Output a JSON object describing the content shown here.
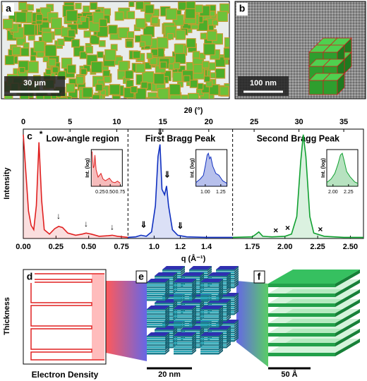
{
  "panels": {
    "a": {
      "label": "a",
      "scale_bar": "30 μm"
    },
    "b": {
      "label": "b",
      "scale_bar": "100 nm"
    },
    "d": {
      "label": "d",
      "y_label": "Thickness",
      "x_label": "Electron Density"
    },
    "e": {
      "label": "e",
      "scale_bar": "20 nm"
    },
    "f": {
      "label": "f",
      "scale_bar": "50 Å"
    }
  },
  "chart_data": {
    "type": "line",
    "panel_label": "c",
    "y_label": "Intensity",
    "x_label": "q (Å⁻¹)",
    "x2_label": "2θ (°)",
    "ylim": [
      0,
      1
    ],
    "segments": [
      {
        "title": "Low-angle region",
        "color": "#e02020",
        "xlim": [
          0,
          0.8
        ],
        "xticks": [
          {
            "value": 0,
            "label": "0.00"
          },
          0.25,
          {
            "value": 0.5,
            "label": "0.50"
          },
          0.75
        ],
        "x2lim": [
          0,
          11.2
        ],
        "x2ticks": [
          0,
          5,
          10
        ],
        "x": [
          0,
          0.02,
          0.04,
          0.06,
          0.08,
          0.1,
          0.12,
          0.14,
          0.16,
          0.2,
          0.24,
          0.27,
          0.3,
          0.34,
          0.4,
          0.45,
          0.48,
          0.52,
          0.58,
          0.65,
          0.68,
          0.72,
          0.8
        ],
        "values": [
          0.95,
          0.6,
          0.25,
          0.12,
          0.08,
          0.3,
          0.88,
          0.35,
          0.08,
          0.04,
          0.09,
          0.11,
          0.1,
          0.05,
          0.03,
          0.04,
          0.05,
          0.04,
          0.02,
          0.025,
          0.03,
          0.02,
          0.01
        ],
        "annotations": [
          {
            "text": "*",
            "x": 0.135,
            "y": 0.95
          },
          {
            "text": "↓",
            "x": 0.27,
            "y": 0.2
          },
          {
            "text": "↓",
            "x": 0.48,
            "y": 0.13
          },
          {
            "text": "↓",
            "x": 0.68,
            "y": 0.1
          }
        ],
        "inset": {
          "y_label": "Int. (log)",
          "xlim": [
            0.03,
            0.8
          ],
          "xticks": [
            0.25,
            {
              "value": 0.5,
              "label": "0.50"
            },
            0.75
          ],
          "x": [
            0.05,
            0.08,
            0.1,
            0.12,
            0.15,
            0.2,
            0.27,
            0.32,
            0.38,
            0.48,
            0.55,
            0.62,
            0.68,
            0.75
          ],
          "values": [
            0.95,
            0.5,
            0.55,
            0.85,
            0.45,
            0.25,
            0.35,
            0.2,
            0.15,
            0.22,
            0.12,
            0.1,
            0.14,
            0.08
          ]
        }
      },
      {
        "title": "First Bragg Peak",
        "color": "#1030c0",
        "xlim": [
          0.8,
          1.6
        ],
        "xticks": [
          {
            "value": 1,
            "label": "1.0"
          },
          1.2,
          1.4
        ],
        "x2lim": [
          11.2,
          22.6
        ],
        "x2ticks": [
          15,
          20
        ],
        "x": [
          0.8,
          0.86,
          0.9,
          0.94,
          0.98,
          1.01,
          1.03,
          1.045,
          1.06,
          1.08,
          1.095,
          1.11,
          1.14,
          1.18,
          1.25,
          1.4,
          1.6
        ],
        "values": [
          0.01,
          0.015,
          0.03,
          0.02,
          0.06,
          0.3,
          0.75,
          0.86,
          0.45,
          0.4,
          0.48,
          0.3,
          0.08,
          0.03,
          0.015,
          0.01,
          0.01
        ],
        "annotations": [
          {
            "text": "⇓",
            "x": 0.92,
            "y": 0.12
          },
          {
            "text": "⇓",
            "x": 1.045,
            "y": 0.97
          },
          {
            "text": "⇓",
            "x": 1.1,
            "y": 0.58
          },
          {
            "text": "⇓",
            "x": 1.2,
            "y": 0.11
          }
        ],
        "inset": {
          "y_label": "Int. (log)",
          "xlim": [
            0.85,
            1.35
          ],
          "xticks": [
            {
              "value": 1,
              "label": "1.00"
            },
            1.25
          ],
          "x": [
            0.85,
            0.92,
            0.97,
            1,
            1.03,
            1.05,
            1.07,
            1.09,
            1.12,
            1.17,
            1.22,
            1.28,
            1.35
          ],
          "values": [
            0.1,
            0.2,
            0.3,
            0.55,
            0.85,
            0.9,
            0.75,
            0.8,
            0.55,
            0.35,
            0.3,
            0.15,
            0.08
          ]
        }
      },
      {
        "title": "Second Bragg Peak",
        "color": "#10a030",
        "xlim": [
          1.6,
          2.6
        ],
        "xticks": [
          1.75,
          {
            "value": 2,
            "label": "2.00"
          },
          2.25,
          {
            "value": 2.5,
            "label": "2.50"
          }
        ],
        "x2lim": [
          22.6,
          37.2
        ],
        "x2ticks": [
          25,
          30,
          35
        ],
        "x": [
          1.6,
          1.75,
          1.78,
          1.8,
          1.83,
          1.9,
          2,
          2.05,
          2.09,
          2.12,
          2.14,
          2.16,
          2.19,
          2.22,
          2.3,
          2.45,
          2.6
        ],
        "values": [
          0.01,
          0.015,
          0.04,
          0.06,
          0.02,
          0.015,
          0.02,
          0.04,
          0.2,
          0.7,
          0.95,
          0.75,
          0.2,
          0.05,
          0.02,
          0.01,
          0.01
        ],
        "annotations": [
          {
            "text": "×",
            "x": 1.93,
            "y": 0.07
          },
          {
            "text": "×",
            "x": 2.02,
            "y": 0.09
          },
          {
            "text": "×",
            "x": 2.27,
            "y": 0.08
          }
        ],
        "inset": {
          "y_label": "Int. (log)",
          "xlim": [
            1.9,
            2.4
          ],
          "xticks": [
            {
              "value": 2,
              "label": "2.00"
            },
            2.25
          ],
          "x": [
            1.9,
            1.97,
            2.03,
            2.08,
            2.12,
            2.15,
            2.18,
            2.22,
            2.28,
            2.35,
            2.4
          ],
          "values": [
            0.1,
            0.2,
            0.35,
            0.6,
            0.85,
            0.9,
            0.7,
            0.4,
            0.25,
            0.12,
            0.08
          ]
        }
      }
    ]
  }
}
